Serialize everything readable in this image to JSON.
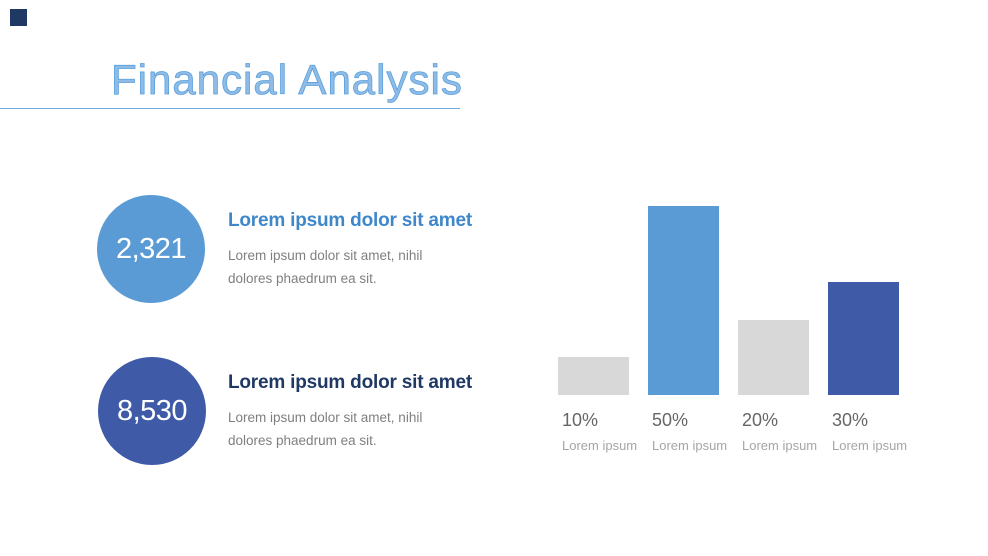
{
  "slide": {
    "title": "Financial Analysis"
  },
  "stats": [
    {
      "value": "2,321",
      "heading": "Lorem ipsum dolor sit amet",
      "body_line1": "Lorem ipsum dolor sit amet, nihil",
      "body_line2": "dolores phaedrum ea sit.",
      "circle_color": "#5b9bd5",
      "heading_color": "#3e87ca"
    },
    {
      "value": "8,530",
      "heading": "Lorem ipsum dolor sit amet",
      "body_line1": "Lorem ipsum dolor sit amet, nihil",
      "body_line2": "dolores phaedrum ea sit.",
      "circle_color": "#3f5aa6",
      "heading_color": "#1f3864"
    }
  ],
  "chart_data": {
    "type": "bar",
    "categories": [
      "Lorem ipsum",
      "Lorem ipsum",
      "Lorem ipsum",
      "Lorem ipsum"
    ],
    "values": [
      10,
      50,
      20,
      30
    ],
    "value_labels": [
      "10%",
      "50%",
      "20%",
      "30%"
    ],
    "bar_colors": [
      "#d8d8d8",
      "#5b9bd5",
      "#d8d8d8",
      "#3f5aa6"
    ],
    "title": "",
    "xlabel": "",
    "ylabel": "",
    "ylim": [
      0,
      53
    ],
    "grid": false,
    "legend": false,
    "axes_hidden": true
  },
  "colors": {
    "background": "#ffffff",
    "logo_square": "#1f3864",
    "title_text": "#5ba0dc",
    "title_underline": "#6faade",
    "body_text": "#7f7f7f",
    "value_label": "#666666",
    "category_label": "#a5a5a5"
  }
}
